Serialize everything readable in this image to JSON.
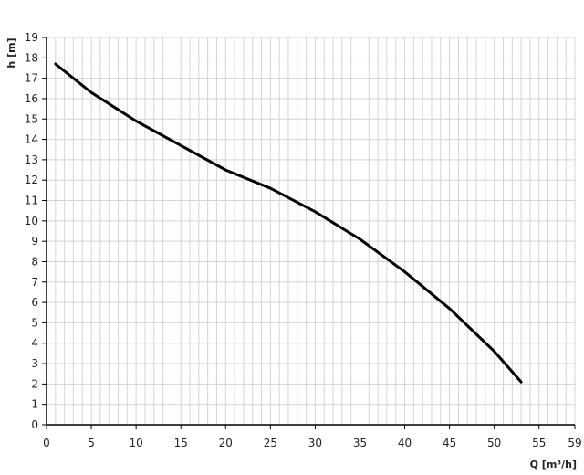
{
  "chart_data": {
    "type": "line",
    "title": "",
    "xlabel": "Q [m³/h]",
    "ylabel": "h [m]",
    "xlim": [
      0,
      59
    ],
    "ylim": [
      0,
      19
    ],
    "xticks": [
      0,
      5,
      10,
      15,
      20,
      25,
      30,
      35,
      40,
      45,
      50,
      55,
      59
    ],
    "yticks": [
      0,
      1,
      2,
      3,
      4,
      5,
      6,
      7,
      8,
      9,
      10,
      11,
      12,
      13,
      14,
      15,
      16,
      17,
      18,
      19
    ],
    "grid": true,
    "series": [
      {
        "color": "#000000",
        "x": [
          1,
          5,
          10,
          15,
          20,
          25,
          30,
          35,
          40,
          45,
          50,
          53
        ],
        "y": [
          17.7,
          16.3,
          14.9,
          13.7,
          12.5,
          11.6,
          10.45,
          9.1,
          7.5,
          5.7,
          3.6,
          2.1
        ]
      }
    ]
  }
}
